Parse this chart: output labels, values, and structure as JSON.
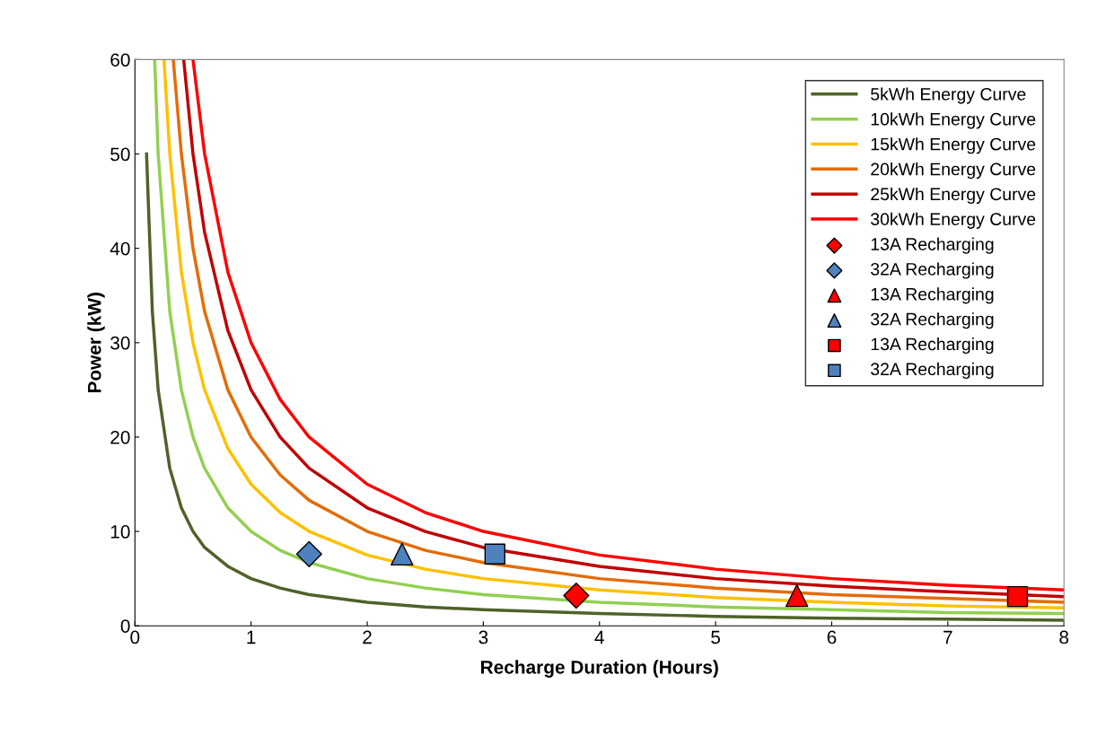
{
  "chart_data": {
    "type": "line",
    "xlabel": "Recharge Duration (Hours)",
    "ylabel": "Power (kW)",
    "xlim": [
      0,
      8
    ],
    "xticks": [
      0,
      1,
      2,
      3,
      4,
      5,
      6,
      7,
      8
    ],
    "ylim": [
      0,
      60
    ],
    "yticks": [
      0,
      10,
      20,
      30,
      40,
      50,
      60
    ],
    "grid": false,
    "legend": "top right",
    "marker": "none",
    "line_style": "solid",
    "series": [
      {
        "name": "5kWh Energy Curve",
        "color": "#4f6228",
        "x": [
          0.1,
          0.15,
          0.2,
          0.3,
          0.4,
          0.5,
          0.6,
          0.8,
          1,
          1.25,
          1.5,
          2,
          2.5,
          3,
          4,
          5,
          6,
          7,
          8
        ],
        "values": [
          50,
          33.3,
          25,
          16.7,
          12.5,
          10,
          8.3,
          6.3,
          5,
          4,
          3.3,
          2.5,
          2,
          1.7,
          1.3,
          1,
          0.8,
          0.7,
          0.6
        ]
      },
      {
        "name": "10kWh Energy Curve",
        "color": "#92d050",
        "x": [
          0.17,
          0.2,
          0.3,
          0.4,
          0.5,
          0.6,
          0.8,
          1,
          1.25,
          1.5,
          2,
          2.5,
          3,
          4,
          5,
          6,
          7,
          8
        ],
        "values": [
          60,
          50,
          33.3,
          25,
          20,
          16.7,
          12.5,
          10,
          8,
          6.7,
          5,
          4,
          3.3,
          2.5,
          2,
          1.7,
          1.4,
          1.3
        ]
      },
      {
        "name": "15kWh Energy Curve",
        "color": "#ffc000",
        "x": [
          0.25,
          0.3,
          0.4,
          0.5,
          0.6,
          0.8,
          1,
          1.25,
          1.5,
          2,
          2.5,
          3,
          4,
          5,
          6,
          7,
          8
        ],
        "values": [
          60,
          50,
          37.5,
          30,
          25,
          18.8,
          15,
          12,
          10,
          7.5,
          6,
          5,
          3.8,
          3,
          2.5,
          2.1,
          1.9
        ]
      },
      {
        "name": "20kWh Energy Curve",
        "color": "#e36c09",
        "x": [
          0.33,
          0.4,
          0.5,
          0.6,
          0.8,
          1,
          1.25,
          1.5,
          2,
          2.5,
          3,
          4,
          5,
          6,
          7,
          8
        ],
        "values": [
          60,
          50,
          40,
          33.3,
          25,
          20,
          16,
          13.3,
          10,
          8,
          6.7,
          5,
          4,
          3.3,
          2.9,
          2.5
        ]
      },
      {
        "name": "25kWh Energy Curve",
        "color": "#c00000",
        "x": [
          0.42,
          0.5,
          0.6,
          0.8,
          1,
          1.25,
          1.5,
          2,
          2.5,
          3,
          4,
          5,
          6,
          7,
          8
        ],
        "values": [
          60,
          50,
          41.7,
          31.3,
          25,
          20,
          16.7,
          12.5,
          10,
          8.3,
          6.3,
          5,
          4.2,
          3.6,
          3.1
        ]
      },
      {
        "name": "30kWh Energy Curve",
        "color": "#ff0000",
        "x": [
          0.5,
          0.6,
          0.8,
          1,
          1.25,
          1.5,
          2,
          2.5,
          3,
          4,
          5,
          6,
          7,
          8
        ],
        "values": [
          60,
          50,
          37.5,
          30,
          24,
          20,
          15,
          12,
          10,
          7.5,
          6,
          5,
          4.3,
          3.8
        ]
      },
      {
        "name": "13A Recharging",
        "type": "scatter",
        "marker": "diamond",
        "color": "#ff0000",
        "x": [
          3.8
        ],
        "values": [
          3.2
        ]
      },
      {
        "name": "32A Recharging",
        "type": "scatter",
        "marker": "diamond",
        "color": "#4f81bd",
        "x": [
          1.5
        ],
        "values": [
          7.6
        ]
      },
      {
        "name": "13A Recharging",
        "type": "scatter",
        "marker": "triangle",
        "color": "#ff0000",
        "x": [
          5.7
        ],
        "values": [
          3.2
        ]
      },
      {
        "name": "32A Recharging",
        "type": "scatter",
        "marker": "triangle",
        "color": "#4f81bd",
        "x": [
          2.3
        ],
        "values": [
          7.6
        ]
      },
      {
        "name": "13A Recharging",
        "type": "scatter",
        "marker": "square",
        "color": "#ff0000",
        "x": [
          7.6
        ],
        "values": [
          3.1
        ]
      },
      {
        "name": "32A Recharging",
        "type": "scatter",
        "marker": "square",
        "color": "#4f81bd",
        "x": [
          3.1
        ],
        "values": [
          7.6
        ]
      }
    ]
  }
}
